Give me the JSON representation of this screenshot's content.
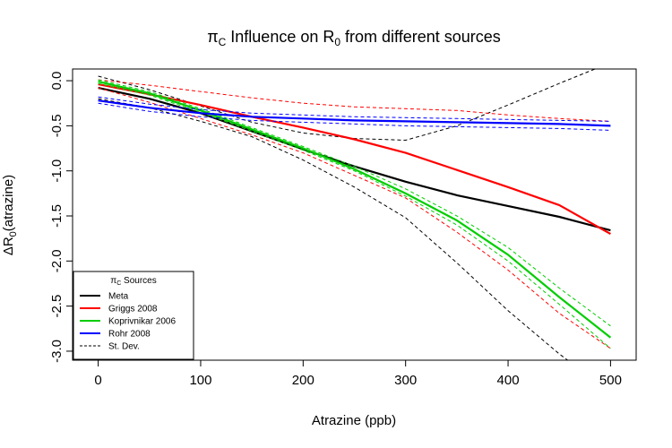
{
  "chart_data": {
    "type": "line",
    "title": {
      "main": "π",
      "main_sub": "C",
      "mid": " Influence on R",
      "mid_sub": "0",
      "end": " from different sources"
    },
    "xlabel": "Atrazine (ppb)",
    "ylabel": {
      "delta": "ΔR",
      "sub": "0",
      "rest": "(atrazine)"
    },
    "xlim": [
      -25,
      525
    ],
    "ylim": [
      -3.1,
      0.13
    ],
    "x_ticks": [
      0,
      100,
      200,
      300,
      400,
      500
    ],
    "y_ticks": [
      0.0,
      -0.5,
      -1.0,
      -1.5,
      -2.0,
      -2.5,
      -3.0
    ],
    "x_tick_labels": [
      "0",
      "100",
      "200",
      "300",
      "400",
      "500"
    ],
    "y_tick_labels": [
      "0.0",
      "-0.5",
      "-1.0",
      "-1.5",
      "-2.0",
      "-2.5",
      "-3.0"
    ],
    "grid": false,
    "legend": {
      "position": "bottom-left",
      "title": {
        "main": "π",
        "sub": "C",
        "rest": " Sources"
      },
      "entries": [
        {
          "label": "Meta",
          "color": "#000000",
          "dash": false
        },
        {
          "label": "Griggs 2008",
          "color": "#ff0000",
          "dash": false
        },
        {
          "label": "Koprivnikar 2006",
          "color": "#00cd00",
          "dash": false
        },
        {
          "label": "Rohr 2008",
          "color": "#0000ff",
          "dash": false
        },
        {
          "label": "St. Dev.",
          "color": "#000000",
          "dash": true
        }
      ]
    },
    "series": [
      {
        "name": "Meta",
        "color": "#000000",
        "width": 2.2,
        "dash": false,
        "x": [
          0,
          50,
          100,
          150,
          200,
          250,
          300,
          350,
          400,
          450,
          500
        ],
        "y": [
          -0.08,
          -0.2,
          -0.36,
          -0.56,
          -0.76,
          -0.95,
          -1.12,
          -1.27,
          -1.39,
          -1.51,
          -1.66
        ]
      },
      {
        "name": "Meta",
        "color": "#000000",
        "width": 1,
        "dash": true,
        "x": [
          0,
          50,
          100,
          150,
          200,
          250,
          300,
          350,
          400,
          450,
          500
        ],
        "y": [
          0.05,
          -0.1,
          -0.28,
          -0.46,
          -0.58,
          -0.64,
          -0.66,
          -0.5,
          -0.27,
          -0.03,
          0.2
        ]
      },
      {
        "name": "Meta",
        "color": "#000000",
        "width": 1,
        "dash": true,
        "x": [
          0,
          50,
          100,
          150,
          200,
          250,
          300,
          350,
          400,
          450,
          470
        ],
        "y": [
          -0.2,
          -0.3,
          -0.45,
          -0.62,
          -0.88,
          -1.18,
          -1.52,
          -2.02,
          -2.55,
          -3.03,
          -3.2
        ]
      },
      {
        "name": "Griggs 2008",
        "color": "#ff0000",
        "width": 2.2,
        "dash": false,
        "x": [
          0,
          50,
          100,
          150,
          200,
          250,
          300,
          350,
          400,
          450,
          500
        ],
        "y": [
          -0.04,
          -0.15,
          -0.27,
          -0.4,
          -0.52,
          -0.65,
          -0.8,
          -0.99,
          -1.18,
          -1.38,
          -1.7
        ]
      },
      {
        "name": "Griggs 2008",
        "color": "#ff0000",
        "width": 1,
        "dash": true,
        "x": [
          0,
          50,
          100,
          150,
          200,
          250,
          300,
          350,
          400,
          450,
          500
        ],
        "y": [
          0.01,
          -0.05,
          -0.12,
          -0.19,
          -0.25,
          -0.29,
          -0.31,
          -0.33,
          -0.38,
          -0.42,
          -0.45
        ]
      },
      {
        "name": "Griggs 2008",
        "color": "#ff0000",
        "width": 1,
        "dash": true,
        "x": [
          0,
          50,
          100,
          150,
          200,
          250,
          300,
          350,
          400,
          450,
          500
        ],
        "y": [
          -0.08,
          -0.24,
          -0.42,
          -0.6,
          -0.8,
          -1.05,
          -1.3,
          -1.68,
          -2.1,
          -2.58,
          -2.97
        ]
      },
      {
        "name": "Koprivnikar 2006",
        "color": "#00cd00",
        "width": 2.2,
        "dash": false,
        "x": [
          0,
          50,
          100,
          150,
          200,
          250,
          300,
          350,
          400,
          450,
          500
        ],
        "y": [
          -0.01,
          -0.14,
          -0.33,
          -0.54,
          -0.75,
          -0.98,
          -1.25,
          -1.55,
          -1.93,
          -2.4,
          -2.85
        ]
      },
      {
        "name": "Koprivnikar 2006",
        "color": "#00cd00",
        "width": 1,
        "dash": true,
        "x": [
          0,
          50,
          100,
          150,
          200,
          250,
          300,
          350,
          400,
          450,
          500
        ],
        "y": [
          0.01,
          -0.12,
          -0.31,
          -0.52,
          -0.73,
          -0.95,
          -1.2,
          -1.5,
          -1.85,
          -2.3,
          -2.72
        ]
      },
      {
        "name": "Koprivnikar 2006",
        "color": "#00cd00",
        "width": 1,
        "dash": true,
        "x": [
          0,
          50,
          100,
          150,
          200,
          250,
          300,
          350,
          400,
          450,
          500
        ],
        "y": [
          -0.03,
          -0.16,
          -0.35,
          -0.56,
          -0.77,
          -1.0,
          -1.28,
          -1.6,
          -2.0,
          -2.48,
          -2.97
        ]
      },
      {
        "name": "Rohr 2008",
        "color": "#0000ff",
        "width": 2.2,
        "dash": false,
        "x": [
          0,
          50,
          100,
          150,
          200,
          250,
          300,
          350,
          400,
          450,
          500
        ],
        "y": [
          -0.22,
          -0.3,
          -0.36,
          -0.4,
          -0.42,
          -0.44,
          -0.45,
          -0.46,
          -0.47,
          -0.48,
          -0.5
        ]
      },
      {
        "name": "Rohr 2008",
        "color": "#0000ff",
        "width": 1,
        "dash": true,
        "x": [
          0,
          50,
          100,
          150,
          200,
          250,
          300,
          350,
          400,
          450,
          500
        ],
        "y": [
          -0.18,
          -0.26,
          -0.32,
          -0.36,
          -0.38,
          -0.4,
          -0.41,
          -0.42,
          -0.43,
          -0.44,
          -0.45
        ]
      },
      {
        "name": "Rohr 2008",
        "color": "#0000ff",
        "width": 1,
        "dash": true,
        "x": [
          0,
          50,
          100,
          150,
          200,
          250,
          300,
          350,
          400,
          450,
          500
        ],
        "y": [
          -0.25,
          -0.34,
          -0.4,
          -0.44,
          -0.46,
          -0.48,
          -0.5,
          -0.51,
          -0.52,
          -0.53,
          -0.55
        ]
      }
    ]
  }
}
